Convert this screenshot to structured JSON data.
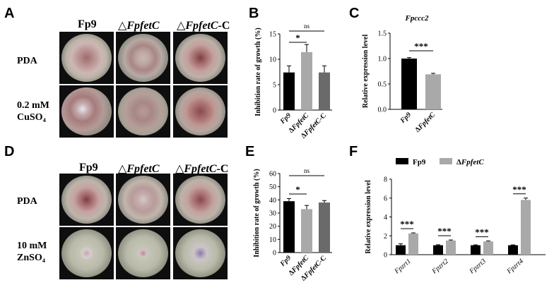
{
  "panels": {
    "A": "A",
    "B": "B",
    "C": "C",
    "D": "D",
    "E": "E",
    "F": "F"
  },
  "plates_top": {
    "columns": [
      "Fp9",
      "△",
      "FpfetC",
      "△",
      "FpfetC",
      "-C"
    ],
    "rows": [
      {
        "line1": "PDA",
        "line2": ""
      },
      {
        "line1": "0.2 mM",
        "line2": "CuSO₄"
      }
    ]
  },
  "plates_bottom": {
    "columns": [
      "Fp9",
      "△",
      "FpfetC",
      "△",
      "FpfetC",
      "-C"
    ],
    "rows": [
      {
        "line1": "PDA",
        "line2": ""
      },
      {
        "line1": "10 mM",
        "line2": "ZnSO₄"
      }
    ]
  },
  "colors": {
    "black": "#000000",
    "light_gray": "#a9a9a9",
    "dark_gray": "#6a6a6a",
    "plate_dish": "#1b1b1b"
  },
  "chart_data": [
    {
      "panel": "B",
      "type": "bar",
      "ylabel": "Inhibition rate of growth (%)",
      "ylim": [
        0,
        15
      ],
      "yticks": [
        "0",
        "5",
        "10",
        "15"
      ],
      "categories": [
        "Fp9",
        "ΔFpfetC",
        "ΔFpfetC-C"
      ],
      "values": [
        7.4,
        11.4,
        7.4
      ],
      "errors": [
        1.3,
        1.5,
        1.3
      ],
      "bar_colors": [
        "#000000",
        "#a9a9a9",
        "#6a6a6a"
      ],
      "significance": [
        {
          "from": 0,
          "to": 1,
          "label": "*"
        },
        {
          "from": 0,
          "to": 2,
          "label": "ns"
        }
      ]
    },
    {
      "panel": "C",
      "type": "bar",
      "title": "Fpccc2",
      "ylabel": "Relative expression level",
      "ylim": [
        0,
        1.5
      ],
      "yticks": [
        "0.0",
        "0.5",
        "1.0",
        "1.5"
      ],
      "categories": [
        "Fp9",
        "ΔFpfetC"
      ],
      "values": [
        1.0,
        0.69
      ],
      "errors": [
        0.02,
        0.02
      ],
      "bar_colors": [
        "#000000",
        "#a9a9a9"
      ],
      "significance": [
        {
          "from": 0,
          "to": 1,
          "label": "***"
        }
      ]
    },
    {
      "panel": "E",
      "type": "bar",
      "ylabel": "Inhibition rate of growth (%)",
      "ylim": [
        0,
        60
      ],
      "yticks": [
        "0",
        "10",
        "20",
        "30",
        "40",
        "50",
        "60"
      ],
      "categories": [
        "Fp9",
        "ΔFpfetC",
        "ΔFpfetC-C"
      ],
      "values": [
        39,
        33,
        38
      ],
      "errors": [
        2.0,
        2.8,
        1.5
      ],
      "bar_colors": [
        "#000000",
        "#a9a9a9",
        "#6a6a6a"
      ],
      "significance": [
        {
          "from": 0,
          "to": 1,
          "label": "*"
        },
        {
          "from": 0,
          "to": 2,
          "label": "ns"
        }
      ]
    },
    {
      "panel": "F",
      "type": "bar",
      "ylabel": "Relative expression level",
      "ylim": [
        0,
        8
      ],
      "yticks": [
        "0",
        "2",
        "4",
        "6",
        "8"
      ],
      "categories": [
        "Fpzrt1",
        "Fpzrt2",
        "Fpzrt3",
        "Fpzrt4"
      ],
      "series": [
        {
          "name": "Fp9",
          "values": [
            1.0,
            1.0,
            1.0,
            1.0
          ],
          "errors": [
            0.15,
            0.05,
            0.04,
            0.04
          ],
          "color": "#000000"
        },
        {
          "name": "ΔFpfetC",
          "values": [
            2.25,
            1.5,
            1.4,
            5.8
          ],
          "errors": [
            0.06,
            0.06,
            0.05,
            0.2
          ],
          "color": "#a9a9a9"
        }
      ],
      "significance": [
        "***",
        "***",
        "***",
        "***"
      ],
      "legend": "top"
    }
  ]
}
